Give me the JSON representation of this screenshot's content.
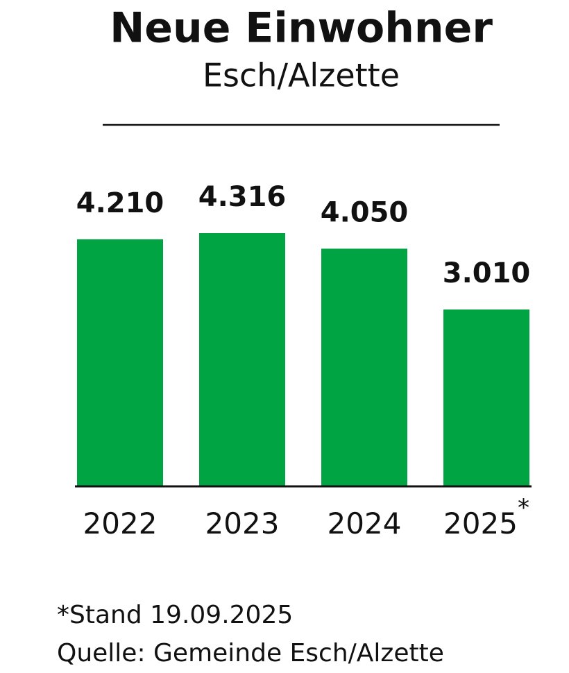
{
  "chart_data": {
    "type": "bar",
    "title": "Neue Einwohner",
    "subtitle": "Esch/Alzette",
    "categories": [
      "2022",
      "2023",
      "2024",
      "2025"
    ],
    "category_marker": "*",
    "values": [
      4210,
      4316,
      4050,
      3010
    ],
    "value_labels": [
      "4.210",
      "4.316",
      "4.050",
      "3.010"
    ],
    "color": "#00a443",
    "notes": [
      "*Stand 19.09.2025",
      "Quelle: Gemeinde Esch/Alzette"
    ]
  }
}
